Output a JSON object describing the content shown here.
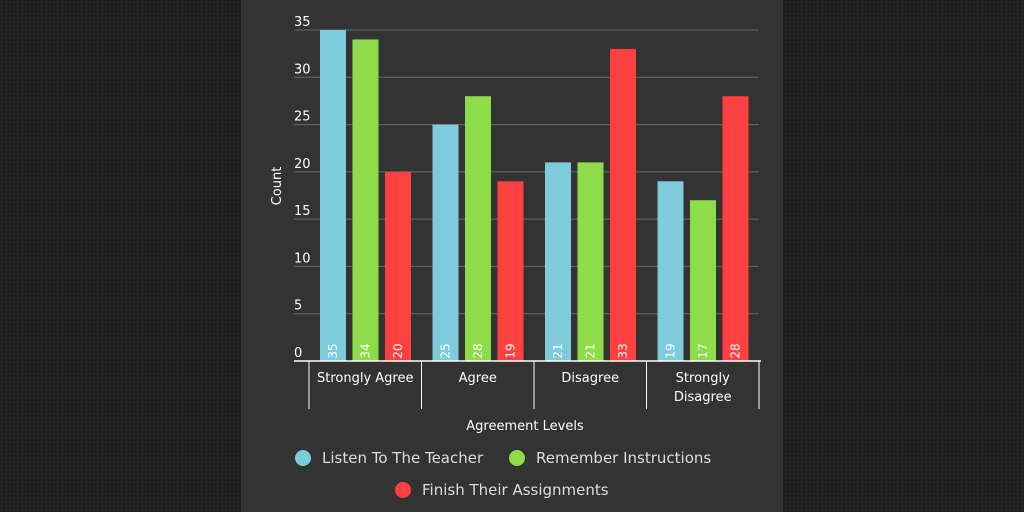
{
  "chart_data": {
    "type": "bar",
    "xlabel": "Agreement Levels",
    "ylabel": "Count",
    "ylim": [
      0,
      35
    ],
    "yticks": [
      0,
      5,
      10,
      15,
      20,
      25,
      30,
      35
    ],
    "grid": true,
    "legend_position": "bottom",
    "categories": [
      [
        "Strongly Agree"
      ],
      [
        "Agree"
      ],
      [
        "Disagree"
      ],
      [
        "Strongly",
        "Disagree"
      ]
    ],
    "series": [
      {
        "name": "Listen To The Teacher",
        "color": "#7ecbdc",
        "values": [
          35,
          25,
          21,
          19
        ]
      },
      {
        "name": "Remember Instructions",
        "color": "#8fdc4b",
        "values": [
          34,
          28,
          21,
          17
        ]
      },
      {
        "name": "Finish Their Assignments",
        "color": "#ff4040",
        "values": [
          20,
          19,
          33,
          28
        ]
      }
    ]
  }
}
